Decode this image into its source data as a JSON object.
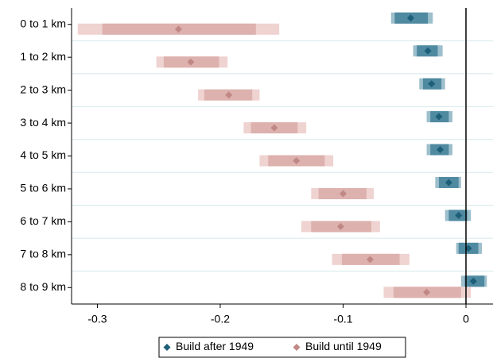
{
  "chart_data": {
    "type": "coefplot",
    "categories": [
      "0 to 1 km",
      "1 to 2 km",
      "2 to 3 km",
      "3 to 4 km",
      "4 to 5 km",
      "5 to 6 km",
      "6 to 7 km",
      "7 to 8 km",
      "8 to 9 km"
    ],
    "xlim": [
      -0.321,
      0.022
    ],
    "xticks": [
      -0.3,
      -0.2,
      -0.1,
      0
    ],
    "reference_line": 0,
    "series": [
      {
        "name": "Build after 1949",
        "color": "#1d5e78",
        "inner_color": "#4f8aa1",
        "outer_color": "#9dbfcc",
        "values": [
          -0.045,
          -0.031,
          -0.028,
          -0.022,
          -0.021,
          -0.014,
          -0.006,
          0.002,
          0.006
        ],
        "inner_low": [
          -0.058,
          -0.04,
          -0.035,
          -0.029,
          -0.029,
          -0.022,
          -0.014,
          -0.006,
          -0.001
        ],
        "inner_high": [
          -0.031,
          -0.023,
          -0.02,
          -0.014,
          -0.014,
          -0.006,
          0.001,
          0.01,
          0.015
        ],
        "outer_low": [
          -0.061,
          -0.043,
          -0.038,
          -0.032,
          -0.032,
          -0.025,
          -0.017,
          -0.008,
          -0.004
        ],
        "outer_high": [
          -0.027,
          -0.019,
          -0.017,
          -0.011,
          -0.011,
          -0.004,
          0.004,
          0.013,
          0.017
        ]
      },
      {
        "name": "Build until 1949",
        "color": "#c08884",
        "inner_color": "#ddb1ae",
        "outer_color": "#efd3d1",
        "values": [
          -0.234,
          -0.224,
          -0.193,
          -0.156,
          -0.138,
          -0.1,
          -0.102,
          -0.078,
          -0.032
        ],
        "inner_low": [
          -0.296,
          -0.246,
          -0.213,
          -0.175,
          -0.161,
          -0.12,
          -0.126,
          -0.101,
          -0.059
        ],
        "inner_high": [
          -0.171,
          -0.201,
          -0.174,
          -0.137,
          -0.115,
          -0.081,
          -0.077,
          -0.054,
          -0.004
        ],
        "outer_low": [
          -0.316,
          -0.252,
          -0.218,
          -0.181,
          -0.168,
          -0.126,
          -0.134,
          -0.109,
          -0.067
        ],
        "outer_high": [
          -0.152,
          -0.194,
          -0.168,
          -0.13,
          -0.108,
          -0.075,
          -0.07,
          -0.046,
          0.004
        ]
      }
    ],
    "legend": "bottom",
    "grid": true
  }
}
